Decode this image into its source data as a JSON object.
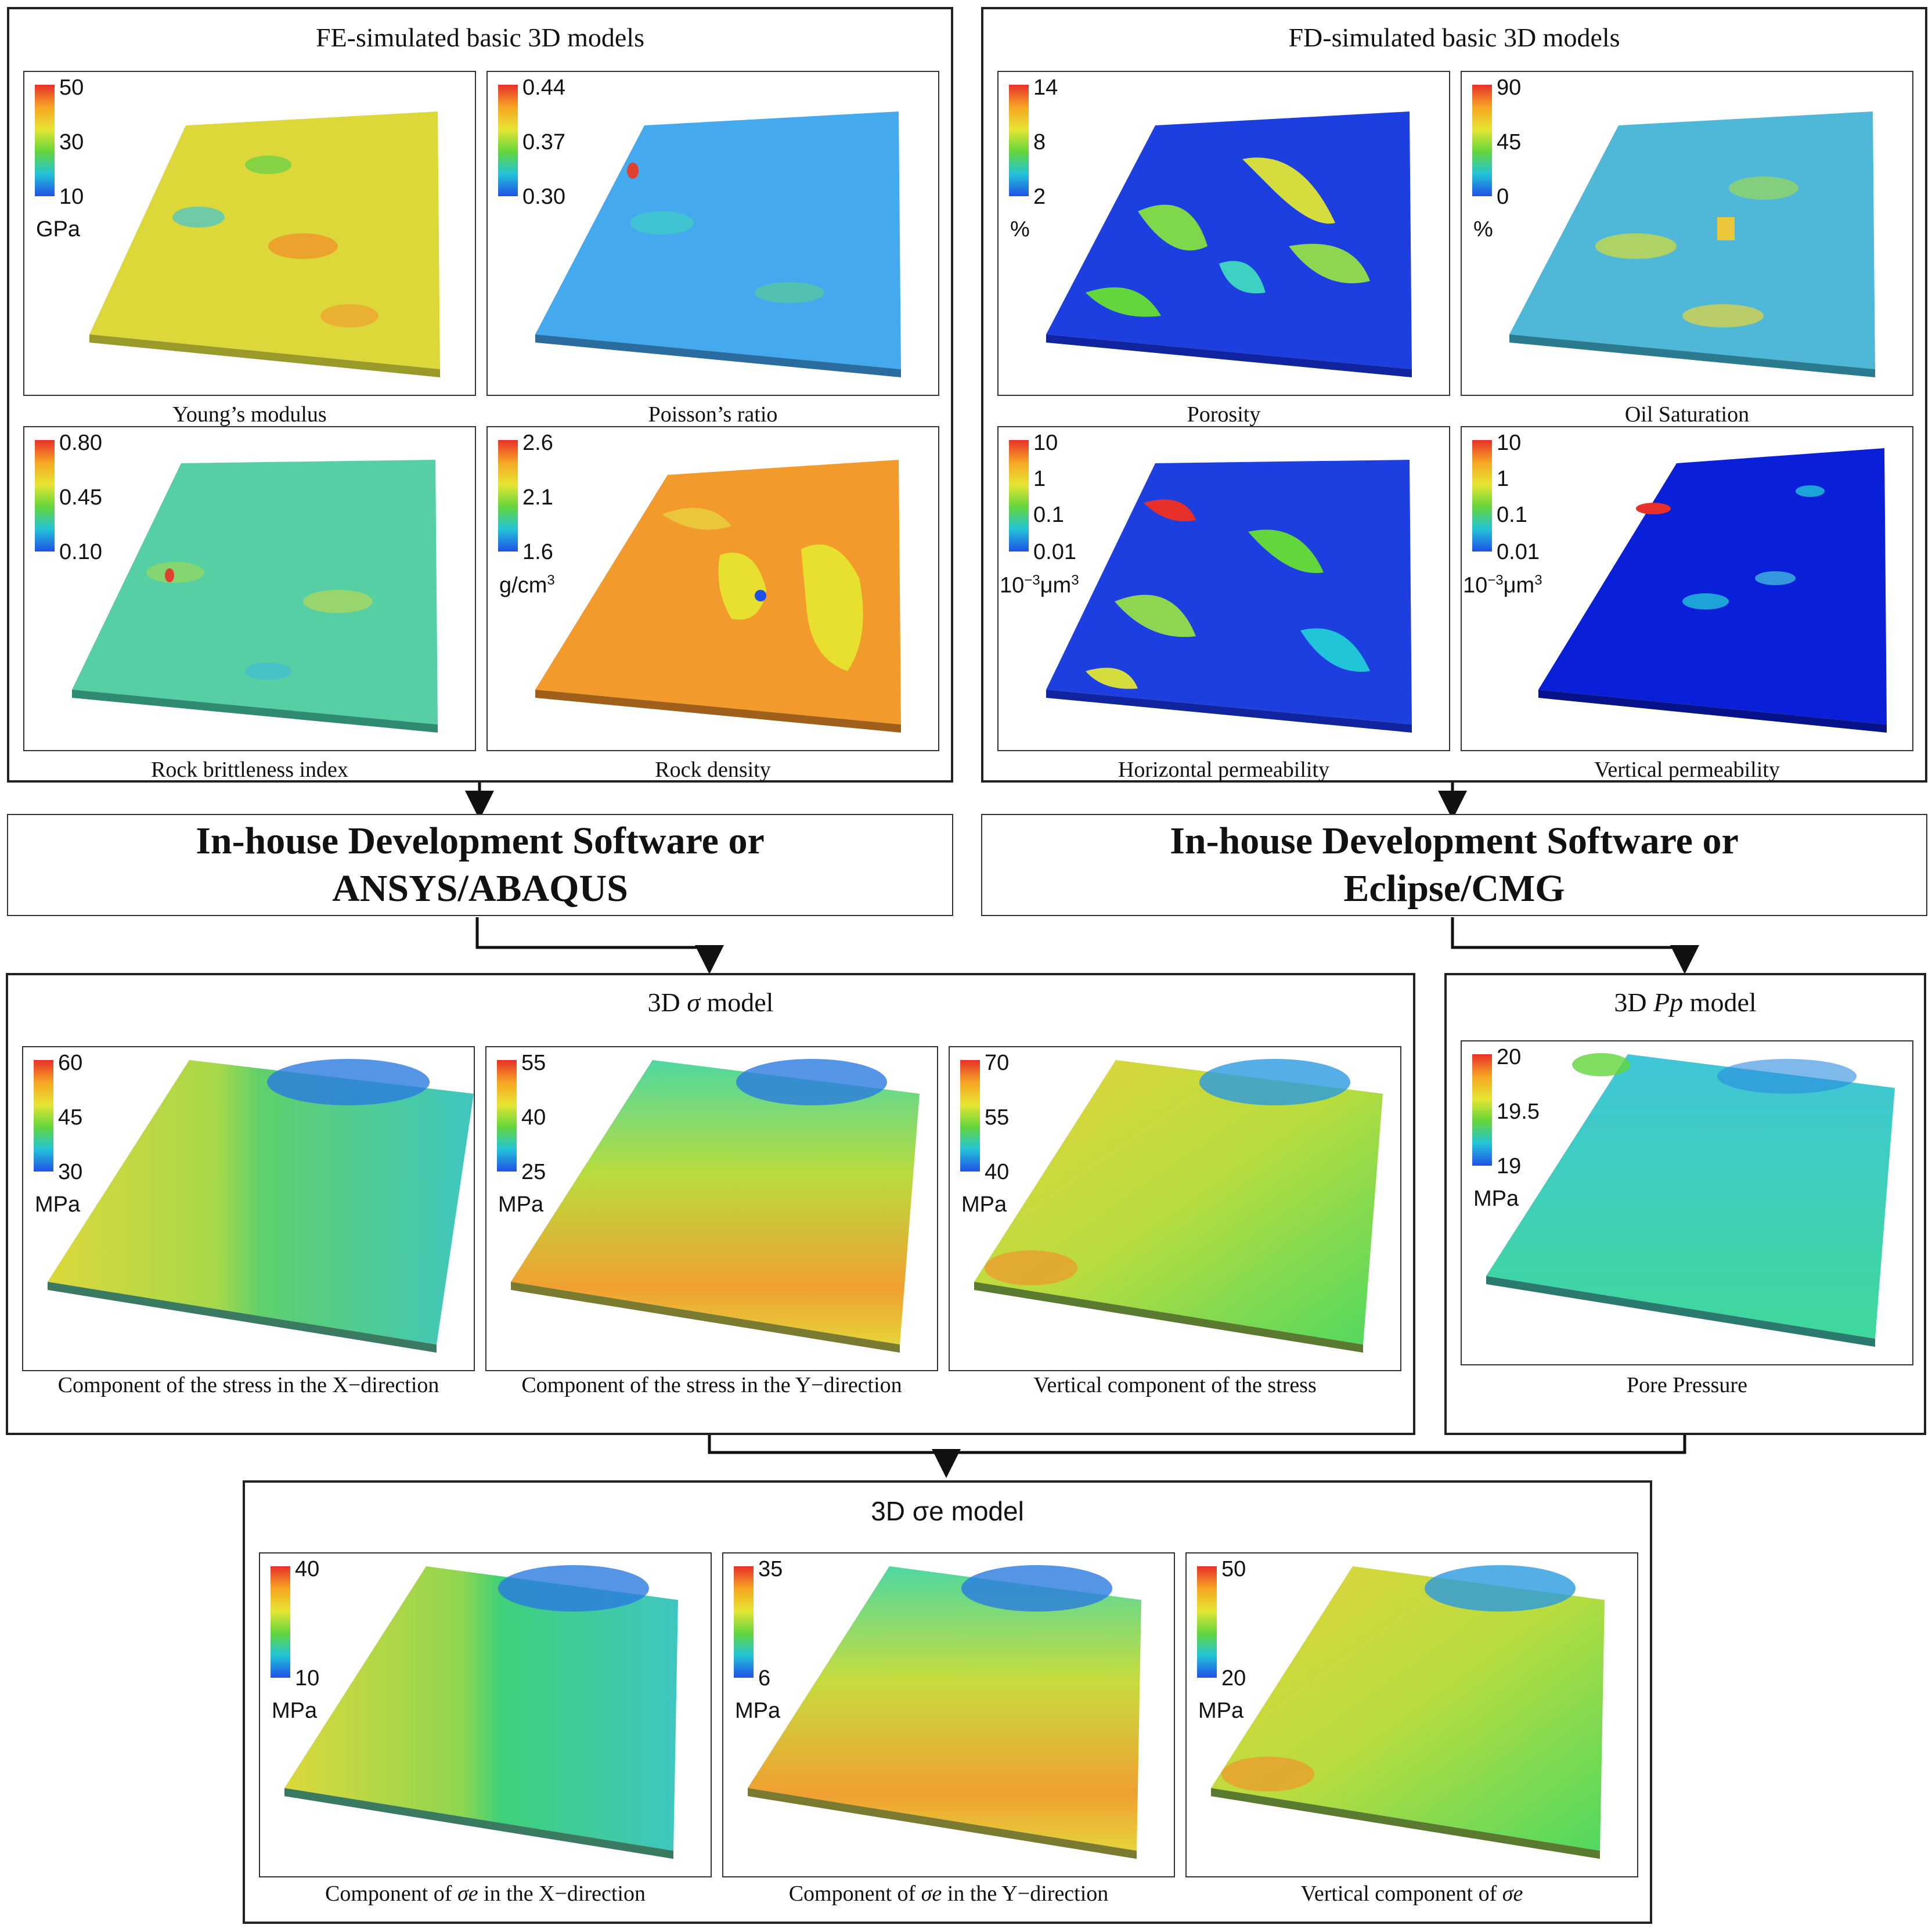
{
  "fe": {
    "title": "FE-simulated basic 3D models",
    "panels": [
      {
        "caption": "Young’s modulus",
        "ticks": [
          "50",
          "30",
          "10"
        ],
        "unit": "GPa"
      },
      {
        "caption": "Poisson’s ratio",
        "ticks": [
          "0.44",
          "0.37",
          "0.30"
        ],
        "unit": ""
      },
      {
        "caption": "Rock brittleness index",
        "ticks": [
          "0.80",
          "0.45",
          "0.10"
        ],
        "unit": ""
      },
      {
        "caption": "Rock density",
        "ticks": [
          "2.6",
          "2.1",
          "1.6"
        ],
        "unit": "g/cm",
        "unit_sup": "3"
      }
    ]
  },
  "fd": {
    "title": "FD-simulated basic 3D models",
    "panels": [
      {
        "caption": "Porosity",
        "ticks": [
          "14",
          "8",
          "2"
        ],
        "unit": "%"
      },
      {
        "caption": "Oil Saturation",
        "ticks": [
          "90",
          "45",
          "0"
        ],
        "unit": "%"
      },
      {
        "caption": "Horizontal permeability",
        "ticks": [
          "10",
          "1",
          "0.1",
          "0.01"
        ],
        "unit_pre": "10",
        "unit_pre_sup": "−3",
        "unit": "μm",
        "unit_sup": "3"
      },
      {
        "caption": "Vertical permeability",
        "ticks": [
          "10",
          "1",
          "0.1",
          "0.01"
        ],
        "unit_pre": "10",
        "unit_pre_sup": "−3",
        "unit": "μm",
        "unit_sup": "3"
      }
    ]
  },
  "software": {
    "left": {
      "line1": "In-house Development Software or",
      "line2": "ANSYS/ABAQUS"
    },
    "right": {
      "line1": "In-house Development Software or",
      "line2": "Eclipse/CMG"
    }
  },
  "sigma": {
    "title_pre": "3D ",
    "title_sym": "σ",
    "title_post": " model",
    "panels": [
      {
        "caption": "Component of the stress in the X−direction",
        "ticks": [
          "60",
          "45",
          "30"
        ],
        "unit": "MPa"
      },
      {
        "caption": "Component of the stress in the Y−direction",
        "ticks": [
          "55",
          "40",
          "25"
        ],
        "unit": "MPa"
      },
      {
        "caption": "Vertical component of the stress",
        "ticks": [
          "70",
          "55",
          "40"
        ],
        "unit": "MPa"
      }
    ]
  },
  "pp": {
    "title_pre": "3D ",
    "title_sym": "Pp",
    "title_post": " model",
    "panel": {
      "caption": "Pore Pressure",
      "ticks": [
        "20",
        "19.5",
        "19"
      ],
      "unit": "MPa"
    }
  },
  "sigma_e": {
    "title": "3D σe model",
    "panels": [
      {
        "caption_pre": "Component of ",
        "caption_sym": "σe",
        "caption_post": " in the X−direction",
        "ticks": [
          "40",
          "10"
        ],
        "unit": "MPa"
      },
      {
        "caption_pre": "Component of ",
        "caption_sym": "σe",
        "caption_post": " in the Y−direction",
        "ticks": [
          "35",
          "6"
        ],
        "unit": "MPa"
      },
      {
        "caption_pre": "Vertical component of ",
        "caption_sym": "σe",
        "caption_post": "",
        "ticks": [
          "50",
          "20"
        ],
        "unit": "MPa"
      }
    ]
  },
  "colors": {
    "jet_top": "#e8302a",
    "jet_mid": "#63d63b",
    "jet_bottom": "#2050e8",
    "border": "#222222",
    "arrow": "#111111"
  }
}
